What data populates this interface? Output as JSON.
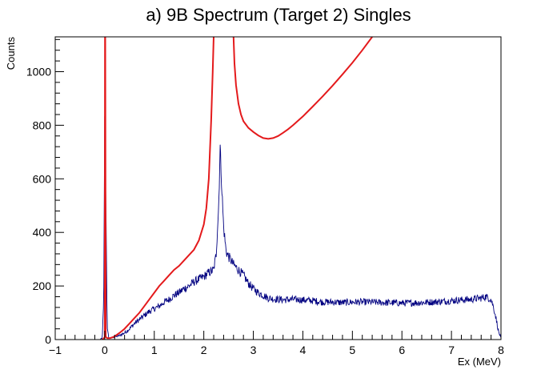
{
  "chart_data": {
    "type": "line",
    "title": "a) 9B Spectrum (Target 2) Singles",
    "xlabel": "Ex (MeV)",
    "ylabel": "Counts",
    "xlim": [
      -1,
      8
    ],
    "ylim": [
      0,
      1130
    ],
    "x_ticks": [
      -1,
      0,
      1,
      2,
      3,
      4,
      5,
      6,
      7,
      8
    ],
    "x_tick_labels": [
      "−1",
      "0",
      "1",
      "2",
      "3",
      "4",
      "5",
      "6",
      "7",
      "8"
    ],
    "y_ticks": [
      0,
      200,
      400,
      600,
      800,
      1000
    ],
    "y_tick_labels": [
      "0",
      "200",
      "400",
      "600",
      "800",
      "1000"
    ],
    "grid": false,
    "legend": "none",
    "series": [
      {
        "style": "histogram",
        "color": "#000080",
        "x": [
          -0.1,
          -0.05,
          -0.02,
          0.0,
          0.02,
          0.05,
          0.08,
          0.1,
          0.2,
          0.3,
          0.4,
          0.5,
          0.6,
          0.7,
          0.8,
          0.9,
          1.0,
          1.1,
          1.2,
          1.3,
          1.4,
          1.5,
          1.6,
          1.7,
          1.8,
          1.9,
          2.0,
          2.1,
          2.2,
          2.25,
          2.3,
          2.33,
          2.36,
          2.4,
          2.45,
          2.5,
          2.6,
          2.7,
          2.8,
          2.9,
          3.0,
          3.1,
          3.2,
          3.3,
          3.4,
          3.5,
          3.6,
          3.8,
          4.0,
          4.2,
          4.4,
          4.6,
          4.8,
          5.0,
          5.2,
          5.4,
          5.6,
          5.8,
          6.0,
          6.2,
          6.4,
          6.6,
          6.8,
          7.0,
          7.2,
          7.4,
          7.6,
          7.7,
          7.8,
          7.85,
          7.9,
          7.95,
          8.0
        ],
        "y": [
          0,
          5,
          150,
          880,
          560,
          40,
          8,
          5,
          10,
          15,
          25,
          40,
          60,
          75,
          90,
          105,
          115,
          125,
          140,
          150,
          165,
          175,
          190,
          200,
          215,
          225,
          235,
          250,
          260,
          320,
          500,
          720,
          580,
          420,
          330,
          310,
          280,
          260,
          240,
          210,
          190,
          175,
          165,
          155,
          152,
          150,
          148,
          150,
          148,
          145,
          140,
          140,
          138,
          140,
          140,
          140,
          138,
          137,
          136,
          137,
          138,
          140,
          142,
          145,
          148,
          150,
          155,
          160,
          150,
          120,
          80,
          30,
          5
        ]
      },
      {
        "style": "line",
        "color": "#e41a1c",
        "x": [
          -0.06,
          -0.03,
          0.0,
          0.005,
          0.01,
          0.02,
          0.05,
          0.1,
          0.15,
          0.2,
          0.3,
          0.4,
          0.5,
          0.6,
          0.7,
          0.8,
          0.9,
          1.0,
          1.1,
          1.2,
          1.3,
          1.4,
          1.5,
          1.6,
          1.7,
          1.8,
          1.9,
          2.0,
          2.05,
          2.1,
          2.15,
          2.18,
          2.2
        ],
        "y": [
          0,
          2,
          10,
          1130,
          1130,
          10,
          5,
          5,
          8,
          12,
          25,
          40,
          60,
          80,
          100,
          125,
          150,
          175,
          200,
          220,
          240,
          260,
          275,
          295,
          315,
          335,
          370,
          430,
          490,
          600,
          820,
          1000,
          1130
        ]
      },
      {
        "style": "line",
        "color": "#e41a1c",
        "x": [
          2.6,
          2.62,
          2.65,
          2.7,
          2.75,
          2.8,
          2.9,
          3.0,
          3.1,
          3.2,
          3.3,
          3.4,
          3.5,
          3.6,
          3.7,
          3.8,
          4.0,
          4.2,
          4.4,
          4.6,
          4.8,
          5.0,
          5.2,
          5.4
        ],
        "y": [
          1130,
          1030,
          950,
          880,
          840,
          815,
          790,
          775,
          762,
          752,
          749,
          752,
          760,
          772,
          785,
          800,
          833,
          870,
          908,
          948,
          990,
          1033,
          1080,
          1130
        ]
      }
    ]
  }
}
